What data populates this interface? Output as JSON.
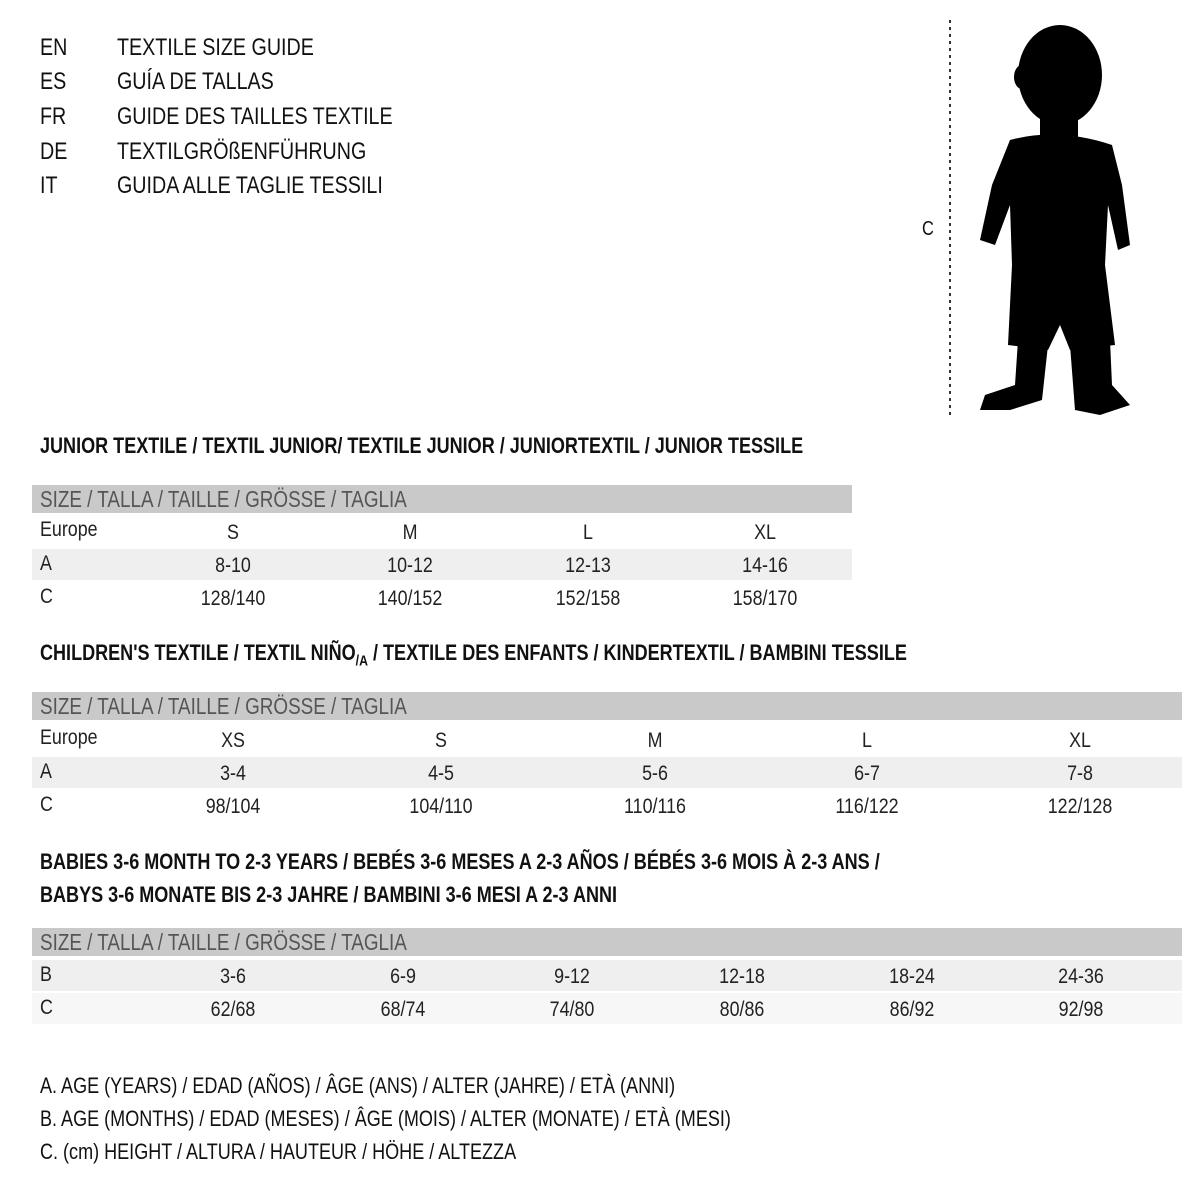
{
  "titles": [
    {
      "code": "EN",
      "text": "TEXTILE SIZE GUIDE"
    },
    {
      "code": "ES",
      "text": "GUÍA DE TALLAS"
    },
    {
      "code": "FR",
      "text": "GUIDE DES TAILLES TEXTILE"
    },
    {
      "code": "DE",
      "text": "TEXTILGRÖßENFÜHRUNG"
    },
    {
      "code": "IT",
      "text": "GUIDA ALLE TAGLIE TESSILI"
    }
  ],
  "figure": {
    "height_label": "C"
  },
  "junior": {
    "title": "JUNIOR TEXTILE / TEXTIL JUNIOR/ TEXTILE JUNIOR / JUNIORTEXTIL / JUNIOR TESSILE",
    "header": "SIZE / TALLA / TAILLE / GRÖSSE / TAGLIA",
    "rows": [
      {
        "label": "Europe",
        "values": [
          "S",
          "M",
          "L",
          "XL"
        ]
      },
      {
        "label": "A",
        "values": [
          "8-10",
          "10-12",
          "12-13",
          "14-16"
        ]
      },
      {
        "label": "C",
        "values": [
          "128/140",
          "140/152",
          "152/158",
          "158/170"
        ]
      }
    ]
  },
  "children": {
    "title_a": "CHILDREN'S TEXTILE / TEXTIL NIÑO",
    "title_sub": "/A",
    "title_b": " / TEXTILE DES ENFANTS / KINDERTEXTIL / BAMBINI TESSILE",
    "header": "SIZE / TALLA / TAILLE / GRÖSSE / TAGLIA",
    "rows": [
      {
        "label": "Europe",
        "values": [
          "XS",
          "S",
          "M",
          "L",
          "XL"
        ]
      },
      {
        "label": "A",
        "values": [
          "3-4",
          "4-5",
          "5-6",
          "6-7",
          "7-8"
        ]
      },
      {
        "label": "C",
        "values": [
          "98/104",
          "104/110",
          "110/116",
          "116/122",
          "122/128"
        ]
      }
    ]
  },
  "babies": {
    "title_line1": "BABIES 3-6 MONTH TO 2-3 YEARS / BEBÉS 3-6 MESES A 2-3 AÑOS / BÉBÉS 3-6 MOIS À 2-3 ANS /",
    "title_line2": "BABYS 3-6 MONATE BIS 2-3 JAHRE / BAMBINI 3-6 MESI A 2-3 ANNI",
    "header": "SIZE / TALLA / TAILLE / GRÖSSE / TAGLIA",
    "rows": [
      {
        "label": "B",
        "values": [
          "3-6",
          "6-9",
          "9-12",
          "12-18",
          "18-24",
          "24-36"
        ]
      },
      {
        "label": "C",
        "values": [
          "62/68",
          "68/74",
          "74/80",
          "80/86",
          "86/92",
          "92/98"
        ]
      }
    ]
  },
  "legend": [
    "A. AGE (YEARS) / EDAD (AÑOS) / ÂGE (ANS) / ALTER (JAHRE) / ETÀ (ANNI)",
    "B. AGE (MONTHS) / EDAD (MESES) / ÂGE (MOIS) / ALTER (MONATE) / ETÀ (MESI)",
    "C. (cm) HEIGHT / ALTURA / HAUTEUR / HÖHE / ALTEZZA"
  ]
}
